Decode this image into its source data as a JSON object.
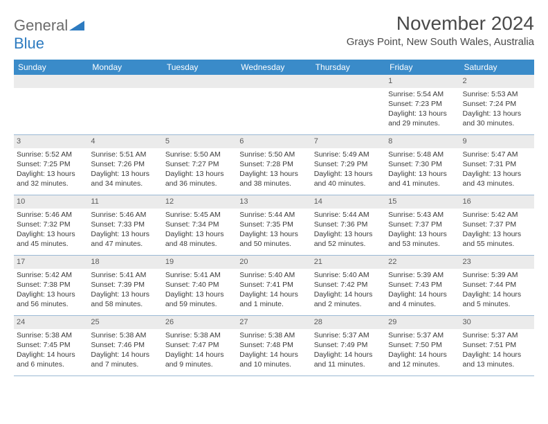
{
  "logo": {
    "part1": "General",
    "part2": "Blue"
  },
  "title": "November 2024",
  "location": "Grays Point, New South Wales, Australia",
  "colors": {
    "header_bg": "#3a8bc9",
    "header_text": "#ffffff",
    "daynum_bg": "#ebebeb",
    "border": "#9ab8d4",
    "text": "#3a3a3a",
    "logo_gray": "#6b6b6b",
    "logo_blue": "#2d7bc0"
  },
  "weekdays": [
    "Sunday",
    "Monday",
    "Tuesday",
    "Wednesday",
    "Thursday",
    "Friday",
    "Saturday"
  ],
  "weeks": [
    [
      null,
      null,
      null,
      null,
      null,
      {
        "n": "1",
        "sr": "5:54 AM",
        "ss": "7:23 PM",
        "dl": "13 hours and 29 minutes."
      },
      {
        "n": "2",
        "sr": "5:53 AM",
        "ss": "7:24 PM",
        "dl": "13 hours and 30 minutes."
      }
    ],
    [
      {
        "n": "3",
        "sr": "5:52 AM",
        "ss": "7:25 PM",
        "dl": "13 hours and 32 minutes."
      },
      {
        "n": "4",
        "sr": "5:51 AM",
        "ss": "7:26 PM",
        "dl": "13 hours and 34 minutes."
      },
      {
        "n": "5",
        "sr": "5:50 AM",
        "ss": "7:27 PM",
        "dl": "13 hours and 36 minutes."
      },
      {
        "n": "6",
        "sr": "5:50 AM",
        "ss": "7:28 PM",
        "dl": "13 hours and 38 minutes."
      },
      {
        "n": "7",
        "sr": "5:49 AM",
        "ss": "7:29 PM",
        "dl": "13 hours and 40 minutes."
      },
      {
        "n": "8",
        "sr": "5:48 AM",
        "ss": "7:30 PM",
        "dl": "13 hours and 41 minutes."
      },
      {
        "n": "9",
        "sr": "5:47 AM",
        "ss": "7:31 PM",
        "dl": "13 hours and 43 minutes."
      }
    ],
    [
      {
        "n": "10",
        "sr": "5:46 AM",
        "ss": "7:32 PM",
        "dl": "13 hours and 45 minutes."
      },
      {
        "n": "11",
        "sr": "5:46 AM",
        "ss": "7:33 PM",
        "dl": "13 hours and 47 minutes."
      },
      {
        "n": "12",
        "sr": "5:45 AM",
        "ss": "7:34 PM",
        "dl": "13 hours and 48 minutes."
      },
      {
        "n": "13",
        "sr": "5:44 AM",
        "ss": "7:35 PM",
        "dl": "13 hours and 50 minutes."
      },
      {
        "n": "14",
        "sr": "5:44 AM",
        "ss": "7:36 PM",
        "dl": "13 hours and 52 minutes."
      },
      {
        "n": "15",
        "sr": "5:43 AM",
        "ss": "7:37 PM",
        "dl": "13 hours and 53 minutes."
      },
      {
        "n": "16",
        "sr": "5:42 AM",
        "ss": "7:37 PM",
        "dl": "13 hours and 55 minutes."
      }
    ],
    [
      {
        "n": "17",
        "sr": "5:42 AM",
        "ss": "7:38 PM",
        "dl": "13 hours and 56 minutes."
      },
      {
        "n": "18",
        "sr": "5:41 AM",
        "ss": "7:39 PM",
        "dl": "13 hours and 58 minutes."
      },
      {
        "n": "19",
        "sr": "5:41 AM",
        "ss": "7:40 PM",
        "dl": "13 hours and 59 minutes."
      },
      {
        "n": "20",
        "sr": "5:40 AM",
        "ss": "7:41 PM",
        "dl": "14 hours and 1 minute."
      },
      {
        "n": "21",
        "sr": "5:40 AM",
        "ss": "7:42 PM",
        "dl": "14 hours and 2 minutes."
      },
      {
        "n": "22",
        "sr": "5:39 AM",
        "ss": "7:43 PM",
        "dl": "14 hours and 4 minutes."
      },
      {
        "n": "23",
        "sr": "5:39 AM",
        "ss": "7:44 PM",
        "dl": "14 hours and 5 minutes."
      }
    ],
    [
      {
        "n": "24",
        "sr": "5:38 AM",
        "ss": "7:45 PM",
        "dl": "14 hours and 6 minutes."
      },
      {
        "n": "25",
        "sr": "5:38 AM",
        "ss": "7:46 PM",
        "dl": "14 hours and 7 minutes."
      },
      {
        "n": "26",
        "sr": "5:38 AM",
        "ss": "7:47 PM",
        "dl": "14 hours and 9 minutes."
      },
      {
        "n": "27",
        "sr": "5:38 AM",
        "ss": "7:48 PM",
        "dl": "14 hours and 10 minutes."
      },
      {
        "n": "28",
        "sr": "5:37 AM",
        "ss": "7:49 PM",
        "dl": "14 hours and 11 minutes."
      },
      {
        "n": "29",
        "sr": "5:37 AM",
        "ss": "7:50 PM",
        "dl": "14 hours and 12 minutes."
      },
      {
        "n": "30",
        "sr": "5:37 AM",
        "ss": "7:51 PM",
        "dl": "14 hours and 13 minutes."
      }
    ]
  ],
  "labels": {
    "sunrise": "Sunrise:",
    "sunset": "Sunset:",
    "daylight": "Daylight:"
  }
}
